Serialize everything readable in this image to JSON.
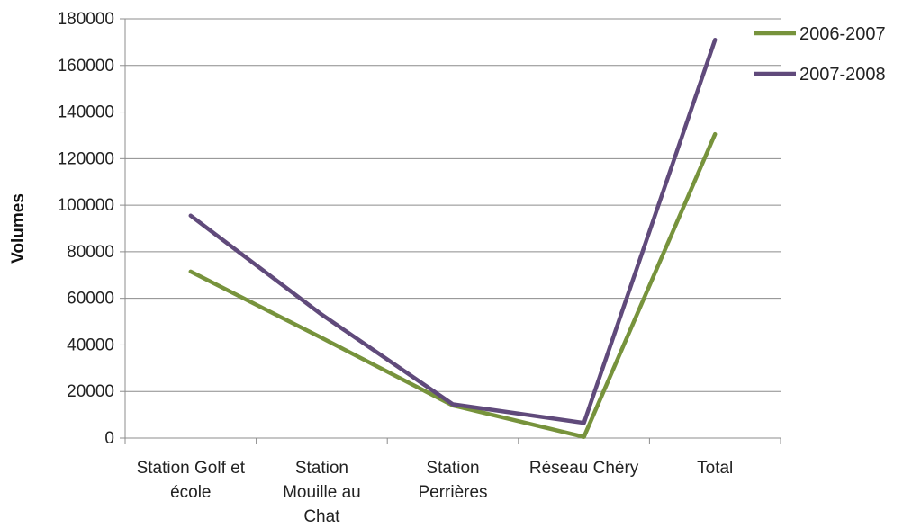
{
  "chart_data": {
    "type": "line",
    "ylabel": "Volumes",
    "xlabel": "",
    "ylim": [
      0,
      180000
    ],
    "yticks": [
      0,
      20000,
      40000,
      60000,
      80000,
      100000,
      120000,
      140000,
      160000,
      180000
    ],
    "yticks_labels": [
      "0",
      "20000",
      "40000",
      "60000",
      "80000",
      "100000",
      "120000",
      "140000",
      "160000",
      "180000"
    ],
    "categories": [
      [
        "Station Golf et",
        "école"
      ],
      [
        "Station",
        "Mouille au",
        "Chat"
      ],
      [
        "Station",
        "Perrières"
      ],
      [
        "Réseau Chéry"
      ],
      [
        "Total"
      ]
    ],
    "grid": "horizontal",
    "legend": "right",
    "series": [
      {
        "name": "2006-2007",
        "color": "#77933c",
        "values": [
          71500,
          43000,
          14000,
          500,
          130500
        ]
      },
      {
        "name": "2007-2008",
        "color": "#604a7b",
        "values": [
          95500,
          53000,
          14500,
          6500,
          171000
        ]
      }
    ]
  }
}
